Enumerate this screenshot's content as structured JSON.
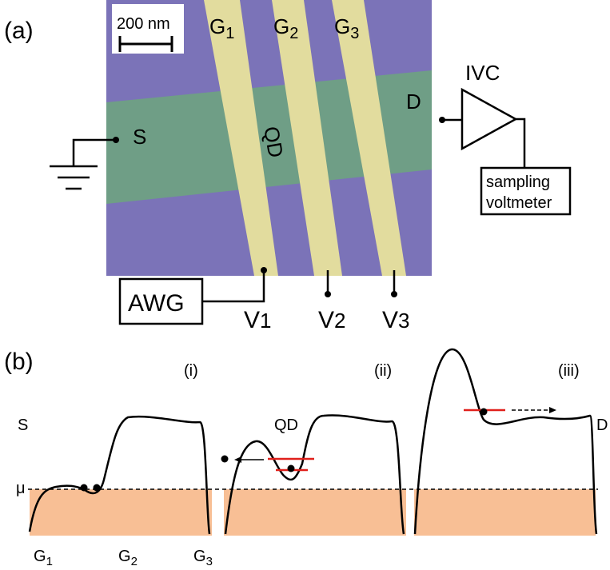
{
  "panel_a": {
    "label": "(a)",
    "scale_bar": "200 nm",
    "gates": [
      {
        "main": "G",
        "sub": "1"
      },
      {
        "main": "G",
        "sub": "2"
      },
      {
        "main": "G",
        "sub": "3"
      }
    ],
    "source": "S",
    "drain": "D",
    "dot": "QD",
    "amplifier": "IVC",
    "meter": [
      "sampling",
      "voltmeter"
    ],
    "generator": "AWG",
    "voltages": [
      {
        "main": "V",
        "sub": "1"
      },
      {
        "main": "V",
        "sub": "2"
      },
      {
        "main": "V",
        "sub": "3"
      }
    ]
  },
  "panel_b": {
    "label": "(b)",
    "steps": [
      "(i)",
      "(ii)",
      "(iii)"
    ],
    "source": "S",
    "dot": "QD",
    "drain": "D",
    "fermi": "μ",
    "gates": [
      {
        "main": "G",
        "sub": "1"
      },
      {
        "main": "G",
        "sub": "2"
      },
      {
        "main": "G",
        "sub": "3"
      }
    ]
  }
}
